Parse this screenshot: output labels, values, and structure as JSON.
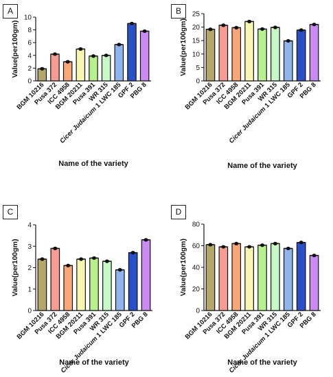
{
  "chart_data": [
    {
      "panel": "A",
      "type": "bar",
      "categories": [
        "BGM 10216",
        "Pusa 372",
        "ICC 4958",
        "BGM 20211",
        "Pusa 391",
        "WR 315",
        "Cicer Judaicum 1 LWC 185",
        "GPF 2",
        "PBG 8"
      ],
      "values": [
        1.9,
        4.2,
        3.0,
        5.0,
        3.9,
        4.0,
        5.7,
        9.0,
        7.8
      ],
      "ylim": [
        0,
        10
      ],
      "yticks": [
        "0",
        "2",
        "4",
        "6",
        "8",
        "10"
      ],
      "ylabel": "Value(per100gm)",
      "xlabel": "Name of the variety"
    },
    {
      "panel": "B",
      "type": "bar",
      "categories": [
        "BGM 10216",
        "Pusa 372",
        "ICC 4958",
        "BGM 20211",
        "Pusa 391",
        "WR 315",
        "Cicer Judaicum 1 LWC 185",
        "GPF 2",
        "PBG 8"
      ],
      "values": [
        19.2,
        20.7,
        19.8,
        22.1,
        19.3,
        19.9,
        14.9,
        18.9,
        21.0
      ],
      "ylim": [
        0,
        25
      ],
      "yticks": [
        "0",
        "5",
        "10",
        "15",
        "20",
        "25"
      ],
      "ylabel": "Value(per100gm)",
      "xlabel": "Name of the variety"
    },
    {
      "panel": "C",
      "type": "bar",
      "categories": [
        "BGM 10216",
        "Pusa 372",
        "ICC 4958",
        "BGM 20211",
        "Pusa 391",
        "WR 315",
        "Cicer Judaicum 1 LWC 185",
        "GPF 2",
        "PBG 8"
      ],
      "values": [
        2.4,
        2.9,
        2.1,
        2.4,
        2.45,
        2.3,
        1.9,
        2.7,
        3.3
      ],
      "ylim": [
        0,
        4
      ],
      "yticks": [
        "0",
        "1",
        "2",
        "3",
        "4"
      ],
      "ylabel": "Value(per100gm)",
      "xlabel": "Name of the variety"
    },
    {
      "panel": "D",
      "type": "bar",
      "categories": [
        "BGM 10216",
        "Pusa 372",
        "ICC 4958",
        "BGM 20211",
        "Pusa 391",
        "WR 315",
        "Cicer Judaicum 1 LWC 185",
        "GPF 2",
        "PBG 8"
      ],
      "values": [
        61,
        59,
        62,
        59,
        60.5,
        62,
        57.5,
        63,
        51
      ],
      "ylim": [
        0,
        80
      ],
      "yticks": [
        "0",
        "20",
        "40",
        "60",
        "80"
      ],
      "ylabel": "Value(per100gm)",
      "xlabel": "Name of the variety"
    }
  ],
  "colors": {
    "bars": [
      "#b5a66e",
      "#f59d95",
      "#f7a777",
      "#f7f7b2",
      "#b8f08f",
      "#c8f7c8",
      "#8fb4ee",
      "#2a50c8",
      "#c98bf2"
    ],
    "outline": "#111111",
    "text": "#111111"
  }
}
